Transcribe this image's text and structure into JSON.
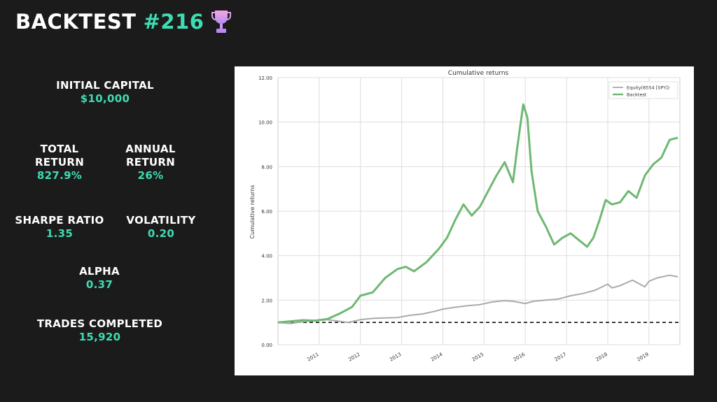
{
  "header": {
    "title": "BACKTEST",
    "number": "#216",
    "icon": "trophy-icon"
  },
  "stats": {
    "initial_capital": {
      "label": "INITIAL CAPITAL",
      "value": "$10,000"
    },
    "total_return": {
      "label": "TOTAL\nRETURN",
      "value": "827.9%"
    },
    "annual_return": {
      "label": "ANNUAL\nRETURN",
      "value": "26%"
    },
    "sharpe_ratio": {
      "label": "SHARPE RATIO",
      "value": "1.35"
    },
    "volatility": {
      "label": "VOLATILITY",
      "value": "0.20"
    },
    "alpha": {
      "label": "ALPHA",
      "value": "0.37"
    },
    "trades_completed": {
      "label": "TRADES COMPLETED",
      "value": "15,920"
    }
  },
  "colors": {
    "background": "#1b1b1b",
    "accent": "#3fdcb3",
    "backtest_line": "#6fb872",
    "equity_line": "#aaaaaa"
  },
  "chart_data": {
    "type": "line",
    "title": "Cumulative returns",
    "ylabel": "Cumulative returns",
    "xlabel": "",
    "ylim": [
      0,
      12
    ],
    "xlim": [
      2010.0,
      2019.75
    ],
    "yticks": [
      "0.00",
      "2.00",
      "4.00",
      "6.00",
      "8.00",
      "10.00",
      "12.00"
    ],
    "xticks": [
      "2011",
      "2012",
      "2013",
      "2014",
      "2015",
      "2016",
      "2017",
      "2018",
      "2019"
    ],
    "grid": true,
    "legend_position": "top-right",
    "baseline": 1.0,
    "series": [
      {
        "name": "Equity(8554 [SPY])",
        "color": "#aaaaaa",
        "x": [
          2010.0,
          2010.3,
          2010.6,
          2010.9,
          2011.2,
          2011.5,
          2011.7,
          2012.0,
          2012.3,
          2012.6,
          2012.9,
          2013.2,
          2013.5,
          2013.8,
          2014.0,
          2014.3,
          2014.6,
          2014.9,
          2015.2,
          2015.5,
          2015.7,
          2016.0,
          2016.2,
          2016.5,
          2016.8,
          2017.1,
          2017.4,
          2017.7,
          2018.0,
          2018.1,
          2018.3,
          2018.6,
          2018.9,
          2019.0,
          2019.2,
          2019.5,
          2019.7
        ],
        "y": [
          1.0,
          0.95,
          1.03,
          1.08,
          1.12,
          1.05,
          1.0,
          1.12,
          1.18,
          1.2,
          1.22,
          1.32,
          1.38,
          1.5,
          1.6,
          1.68,
          1.75,
          1.8,
          1.92,
          1.98,
          1.95,
          1.85,
          1.95,
          2.0,
          2.05,
          2.2,
          2.3,
          2.45,
          2.72,
          2.55,
          2.65,
          2.9,
          2.6,
          2.85,
          3.0,
          3.12,
          3.05
        ]
      },
      {
        "name": "Backtest",
        "color": "#6fb872",
        "x": [
          2010.0,
          2010.3,
          2010.6,
          2010.9,
          2011.2,
          2011.5,
          2011.8,
          2012.0,
          2012.3,
          2012.6,
          2012.9,
          2013.1,
          2013.3,
          2013.6,
          2013.9,
          2014.1,
          2014.3,
          2014.5,
          2014.7,
          2014.9,
          2015.1,
          2015.3,
          2015.5,
          2015.7,
          2015.8,
          2015.95,
          2016.05,
          2016.15,
          2016.3,
          2016.5,
          2016.7,
          2016.9,
          2017.1,
          2017.3,
          2017.5,
          2017.65,
          2017.8,
          2017.95,
          2018.1,
          2018.3,
          2018.5,
          2018.7,
          2018.9,
          2019.1,
          2019.3,
          2019.5,
          2019.7
        ],
        "y": [
          1.0,
          1.05,
          1.1,
          1.08,
          1.15,
          1.4,
          1.7,
          2.2,
          2.35,
          3.0,
          3.4,
          3.5,
          3.3,
          3.7,
          4.3,
          4.8,
          5.6,
          6.3,
          5.8,
          6.2,
          6.9,
          7.6,
          8.2,
          7.3,
          8.8,
          10.8,
          10.2,
          7.8,
          6.0,
          5.3,
          4.5,
          4.8,
          5.0,
          4.7,
          4.4,
          4.8,
          5.6,
          6.5,
          6.3,
          6.4,
          6.9,
          6.6,
          7.6,
          8.1,
          8.4,
          9.2,
          9.3
        ]
      }
    ]
  }
}
